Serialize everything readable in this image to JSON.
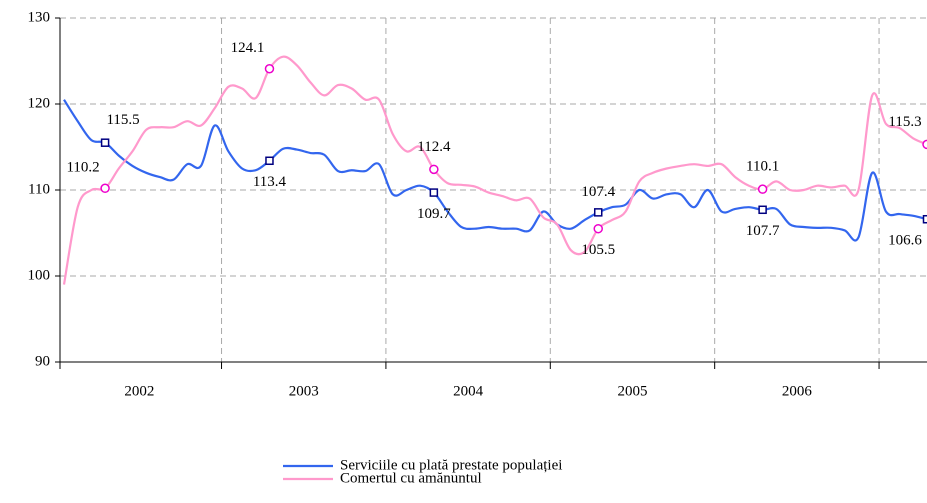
{
  "chart_data": {
    "type": "line",
    "categories": [
      null,
      null,
      null,
      null,
      null,
      null,
      "2002",
      null,
      null,
      null,
      null,
      null,
      null,
      null,
      null,
      null,
      null,
      null,
      "2003",
      null,
      null,
      null,
      null,
      null,
      null,
      null,
      null,
      null,
      null,
      null,
      "2004",
      null,
      null,
      null,
      null,
      null,
      null,
      null,
      null,
      null,
      null,
      null,
      "2005",
      null,
      null,
      null,
      null,
      null,
      null,
      null,
      null,
      null,
      null,
      null,
      "2006",
      null,
      null,
      null,
      null,
      null,
      null,
      null,
      null,
      null
    ],
    "series": [
      {
        "name": "Serviciile cu plată prestate populației",
        "color": "#3366ee",
        "marker_color": "#000080",
        "markers": [
          3,
          15,
          27,
          39,
          51,
          63
        ],
        "values": [
          120.5,
          118,
          115.8,
          115.5,
          114,
          112.8,
          112,
          111.5,
          111.2,
          113,
          112.8,
          117.5,
          114.5,
          112.5,
          112.3,
          113.4,
          114.8,
          114.7,
          114.3,
          114.1,
          112.2,
          112.3,
          112.2,
          113,
          109.5,
          110,
          110.5,
          109.7,
          107.5,
          105.7,
          105.5,
          105.7,
          105.5,
          105.5,
          105.3,
          107.5,
          106,
          105.5,
          106.5,
          107.4,
          108,
          108.3,
          110,
          109,
          109.5,
          109.5,
          108,
          110,
          107.5,
          107.8,
          108,
          107.7,
          107.8,
          106,
          105.7,
          105.6,
          105.6,
          105.3,
          104.5,
          112,
          107.5,
          107.2,
          107,
          106.6
        ]
      },
      {
        "name": "Comertul cu amănuntul",
        "color": "#ff99cc",
        "marker_color": "#ee00cc",
        "markers": [
          3,
          15,
          27,
          39,
          51,
          63
        ],
        "values": [
          99,
          108,
          110,
          110.2,
          112.5,
          114.5,
          117,
          117.3,
          117.3,
          118,
          117.5,
          119.5,
          122,
          121.8,
          120.7,
          124.1,
          125.5,
          124.5,
          122.5,
          121,
          122.2,
          121.8,
          120.5,
          120.5,
          116.5,
          114.5,
          115,
          112.4,
          110.8,
          110.6,
          110.4,
          109.7,
          109.3,
          108.8,
          109,
          106.8,
          106,
          103,
          102.8,
          105.5,
          106.5,
          107.5,
          111,
          112,
          112.5,
          112.8,
          113,
          112.8,
          113,
          111.5,
          110.5,
          110.1,
          111,
          110,
          110,
          110.5,
          110.3,
          110.5,
          110,
          121,
          117.7,
          117.2,
          116,
          115.3
        ]
      }
    ],
    "ylim": [
      90,
      130
    ],
    "yticks": [
      90,
      100,
      110,
      120,
      130
    ],
    "grid": true,
    "legend": "bottom"
  }
}
